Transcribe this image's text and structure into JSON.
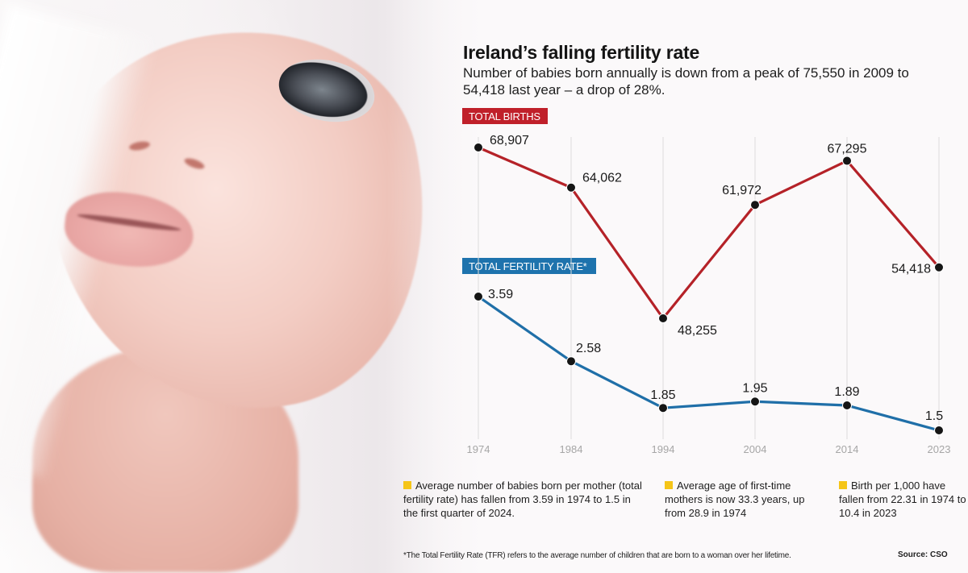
{
  "header": {
    "title": "Ireland’s falling fertility rate",
    "subtitle": "Number of babies born annually is down from a peak of 75,550 in 2009 to 54,418 last year – a drop of 28%."
  },
  "colors": {
    "births": "#b52228",
    "tfr": "#1f6fa8",
    "marker": "#151515",
    "bullet": "#f5c518",
    "gridline": "#dcdcdc"
  },
  "chart_data": [
    {
      "type": "line",
      "title": "TOTAL BIRTHS",
      "x": [
        "1974",
        "1984",
        "1994",
        "2004",
        "2014",
        "2023"
      ],
      "values": [
        68907,
        64062,
        48255,
        61972,
        67295,
        54418
      ],
      "labels": [
        "68,907",
        "64,062",
        "48,255",
        "61,972",
        "67,295",
        "54,418"
      ],
      "ylim": [
        40000,
        72000
      ],
      "grid": "vertical",
      "xlabel": "",
      "ylabel": ""
    },
    {
      "type": "line",
      "title": "TOTAL FERTILITY RATE*",
      "x": [
        "1974",
        "1984",
        "1994",
        "2004",
        "2014",
        "2023"
      ],
      "values": [
        3.59,
        2.58,
        1.85,
        1.95,
        1.89,
        1.5
      ],
      "labels": [
        "3.59",
        "2.58",
        "1.85",
        "1.95",
        "1.89",
        "1.5"
      ],
      "ylim": [
        1.2,
        3.8
      ],
      "grid": "vertical",
      "xlabel": "",
      "ylabel": ""
    }
  ],
  "notes": [
    "Average number of babies born per mother (total fertility rate) has fallen from 3.59 in 1974 to 1.5 in the first quarter of 2024.",
    "Average age of first-time mothers is now 33.3 years, up from 28.9 in 1974",
    "Birth per 1,000 have fallen from 22.31 in 1974 to 10.4 in 2023"
  ],
  "footnote": "*The Total Fertility Rate (TFR) refers to the average number of children that are born to a woman over her lifetime.",
  "source": "Source: CSO"
}
